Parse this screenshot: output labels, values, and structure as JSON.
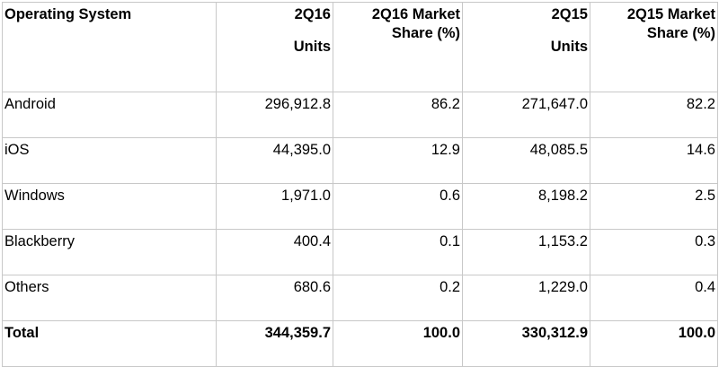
{
  "table": {
    "headers": {
      "os": "Operating System",
      "q2_2016_units_top": "2Q16",
      "q2_2016_units_bottom": "Units",
      "q2_2016_share_top": "2Q16 Market",
      "q2_2016_share_bottom": "Share (%)",
      "q2_2015_units_top": "2Q15",
      "q2_2015_units_bottom": "Units",
      "q2_2015_share_top": "2Q15 Market",
      "q2_2015_share_bottom": "Share (%)"
    },
    "rows": [
      {
        "os": "Android",
        "q2_2016_units": "296,912.8",
        "q2_2016_share": "86.2",
        "q2_2015_units": "271,647.0",
        "q2_2015_share": "82.2"
      },
      {
        "os": "iOS",
        "q2_2016_units": "44,395.0",
        "q2_2016_share": "12.9",
        "q2_2015_units": "48,085.5",
        "q2_2015_share": "14.6"
      },
      {
        "os": "Windows",
        "q2_2016_units": "1,971.0",
        "q2_2016_share": "0.6",
        "q2_2015_units": "8,198.2",
        "q2_2015_share": "2.5"
      },
      {
        "os": "Blackberry",
        "q2_2016_units": "400.4",
        "q2_2016_share": "0.1",
        "q2_2015_units": "1,153.2",
        "q2_2015_share": "0.3"
      },
      {
        "os": "Others",
        "q2_2016_units": "680.6",
        "q2_2016_share": "0.2",
        "q2_2015_units": "1,229.0",
        "q2_2015_share": "0.4"
      }
    ],
    "total": {
      "os": "Total",
      "q2_2016_units": "344,359.7",
      "q2_2016_share": "100.0",
      "q2_2015_units": "330,312.9",
      "q2_2015_share": "100.0"
    }
  }
}
